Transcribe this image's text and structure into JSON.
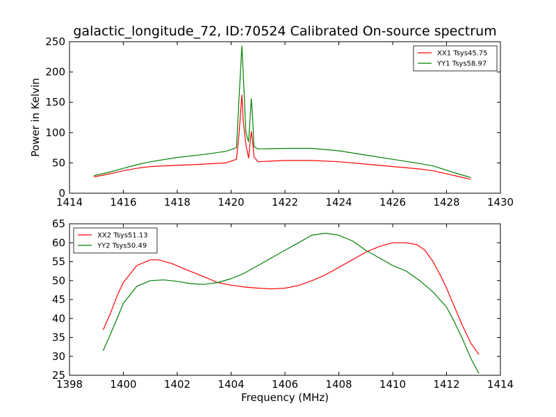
{
  "title": "galactic_longitude_72, ID:70524 Calibrated On-source spectrum",
  "colors": {
    "xx": "#ff0000",
    "yy": "#008000",
    "axes": "#000000",
    "background": "#ffffff"
  },
  "chart_data": [
    {
      "type": "line",
      "xlabel": "",
      "ylabel": "Power in Kelvin",
      "xlim": [
        1414,
        1430
      ],
      "ylim": [
        0,
        250
      ],
      "xticks": [
        1414,
        1416,
        1418,
        1420,
        1422,
        1424,
        1426,
        1428,
        1430
      ],
      "yticks": [
        0,
        50,
        100,
        150,
        200,
        250
      ],
      "grid": false,
      "legend_position": "top-right",
      "series": [
        {
          "name": "XX1 Tsys45.75",
          "color": "#ff0000",
          "x": [
            1414.9,
            1415.5,
            1416.0,
            1416.5,
            1417.0,
            1418.0,
            1419.0,
            1419.8,
            1420.2,
            1420.3,
            1420.4,
            1420.45,
            1420.55,
            1420.65,
            1420.75,
            1420.8,
            1420.85,
            1421.0,
            1422.0,
            1423.0,
            1424.0,
            1425.0,
            1426.0,
            1427.0,
            1427.5,
            1428.0,
            1428.5,
            1428.9
          ],
          "y": [
            27,
            32,
            37,
            41,
            44,
            46,
            48,
            50,
            56,
            100,
            162,
            120,
            80,
            58,
            102,
            85,
            60,
            52,
            54,
            54,
            52,
            48,
            44,
            40,
            37,
            32,
            27,
            23
          ]
        },
        {
          "name": "YY1 Tsys58.97",
          "color": "#008000",
          "x": [
            1414.9,
            1415.5,
            1416.0,
            1416.5,
            1417.0,
            1418.0,
            1419.0,
            1419.8,
            1420.2,
            1420.3,
            1420.4,
            1420.45,
            1420.55,
            1420.65,
            1420.75,
            1420.8,
            1420.85,
            1421.0,
            1422.0,
            1423.0,
            1424.0,
            1425.0,
            1426.0,
            1427.0,
            1427.5,
            1428.0,
            1428.5,
            1428.9
          ],
          "y": [
            29,
            35,
            41,
            47,
            52,
            59,
            64,
            69,
            75,
            160,
            243,
            200,
            100,
            85,
            156,
            125,
            77,
            73,
            74,
            74,
            70,
            63,
            56,
            49,
            45,
            38,
            31,
            26
          ]
        }
      ]
    },
    {
      "type": "line",
      "xlabel": "Frequency (MHz)",
      "ylabel": "",
      "xlim": [
        1398,
        1414
      ],
      "ylim": [
        25,
        65
      ],
      "xticks": [
        1398,
        1400,
        1402,
        1404,
        1406,
        1408,
        1410,
        1412,
        1414
      ],
      "yticks": [
        25,
        30,
        35,
        40,
        45,
        50,
        55,
        60,
        65
      ],
      "grid": false,
      "legend_position": "top-left",
      "series": [
        {
          "name": "XX2 Tsys51.13",
          "color": "#ff0000",
          "x": [
            1399.25,
            1399.5,
            1399.8,
            1400.0,
            1400.5,
            1401.0,
            1401.3,
            1401.8,
            1402.3,
            1403.0,
            1403.5,
            1404.0,
            1404.5,
            1405.0,
            1405.5,
            1406.0,
            1406.5,
            1407.0,
            1407.5,
            1408.0,
            1408.5,
            1409.0,
            1409.5,
            1410.0,
            1410.5,
            1410.9,
            1411.2,
            1411.5,
            1411.8,
            1412.0,
            1412.3,
            1412.6,
            1412.9,
            1413.2
          ],
          "y": [
            37,
            41,
            46.5,
            49.5,
            54,
            55.5,
            55.5,
            54.5,
            53,
            51,
            49.5,
            48.8,
            48.3,
            48,
            47.8,
            48,
            48.7,
            50,
            51.5,
            53.5,
            55.5,
            57.5,
            59,
            60,
            60,
            59.5,
            58,
            55,
            51,
            48,
            43,
            38,
            33.5,
            30.5
          ]
        },
        {
          "name": "YY2 Tsys50.49",
          "color": "#008000",
          "x": [
            1399.25,
            1399.5,
            1399.8,
            1400.0,
            1400.5,
            1401.0,
            1401.5,
            1402.0,
            1402.5,
            1403.0,
            1403.5,
            1404.0,
            1404.5,
            1405.0,
            1405.5,
            1406.0,
            1406.5,
            1407.0,
            1407.5,
            1408.0,
            1408.5,
            1409.0,
            1409.5,
            1410.0,
            1410.5,
            1411.0,
            1411.5,
            1412.0,
            1412.3,
            1412.6,
            1412.9,
            1413.2
          ],
          "y": [
            31.5,
            35.5,
            40.5,
            44,
            48.5,
            50,
            50.2,
            49.8,
            49.2,
            49,
            49.5,
            50.5,
            52,
            54,
            56,
            58,
            60,
            62,
            62.5,
            62,
            60.5,
            58,
            56,
            54,
            52.5,
            50,
            47,
            43,
            39,
            34.5,
            29.5,
            25.5
          ]
        }
      ]
    }
  ]
}
